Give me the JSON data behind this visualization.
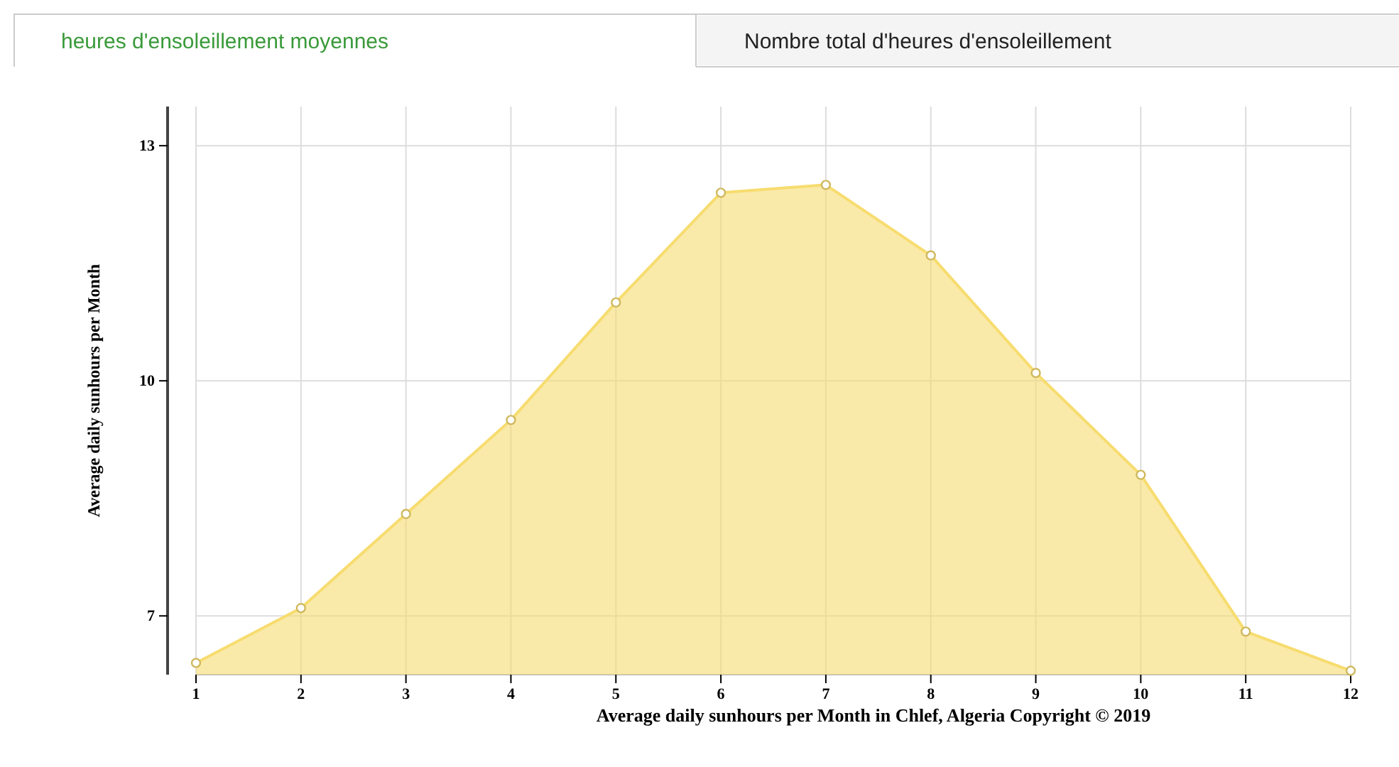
{
  "chart_data": {
    "type": "area",
    "ylabel": "Average daily sunhours per Month",
    "x": [
      1,
      2,
      3,
      4,
      5,
      6,
      7,
      8,
      9,
      10,
      11,
      12
    ],
    "series": [
      {
        "color": "#f7dc6f",
        "values": [
          6.4,
          7.1,
          8.3,
          9.5,
          11.0,
          12.4,
          12.5,
          11.6,
          10.1,
          8.8,
          6.8,
          6.3
        ]
      }
    ],
    "xlim": [
      1,
      12
    ],
    "xticks": [
      1,
      2,
      3,
      4,
      5,
      6,
      7,
      8,
      9,
      10,
      11,
      12
    ],
    "ylim": [
      6.25,
      13.5
    ],
    "yticks": [
      7,
      10,
      13
    ],
    "grid": true,
    "marker": "circle",
    "annotations": [
      "heures d'ensoleillement moyennes",
      "Nombre total d'heures d'ensoleillement",
      "Average daily sunhours per Month in Chlef, Algeria Copyright © 2019"
    ]
  }
}
